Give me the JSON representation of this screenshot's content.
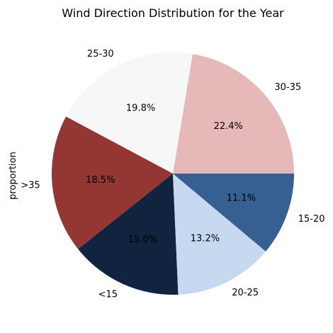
{
  "chart_data": {
    "type": "pie",
    "title": "Wind Direction Distribution for the Year",
    "ylabel": "proportion",
    "slices": [
      {
        "label": "30-35",
        "value": 22.4,
        "pct_label": "22.4%",
        "color": "#e6b8b7"
      },
      {
        "label": "25-30",
        "value": 19.8,
        "pct_label": "19.8%",
        "color": "#f7f7f7"
      },
      {
        "label": ">35",
        "value": 18.5,
        "pct_label": "18.5%",
        "color": "#943634"
      },
      {
        "label": "<15",
        "value": 15.0,
        "pct_label": "15.0%",
        "color": "#10243f"
      },
      {
        "label": "20-25",
        "value": 13.2,
        "pct_label": "13.2%",
        "color": "#c6d9f1"
      },
      {
        "label": "15-20",
        "value": 11.1,
        "pct_label": "11.1%",
        "color": "#366092"
      }
    ],
    "start_angle": "0° (3 o'clock)",
    "direction": "counterclockwise"
  }
}
